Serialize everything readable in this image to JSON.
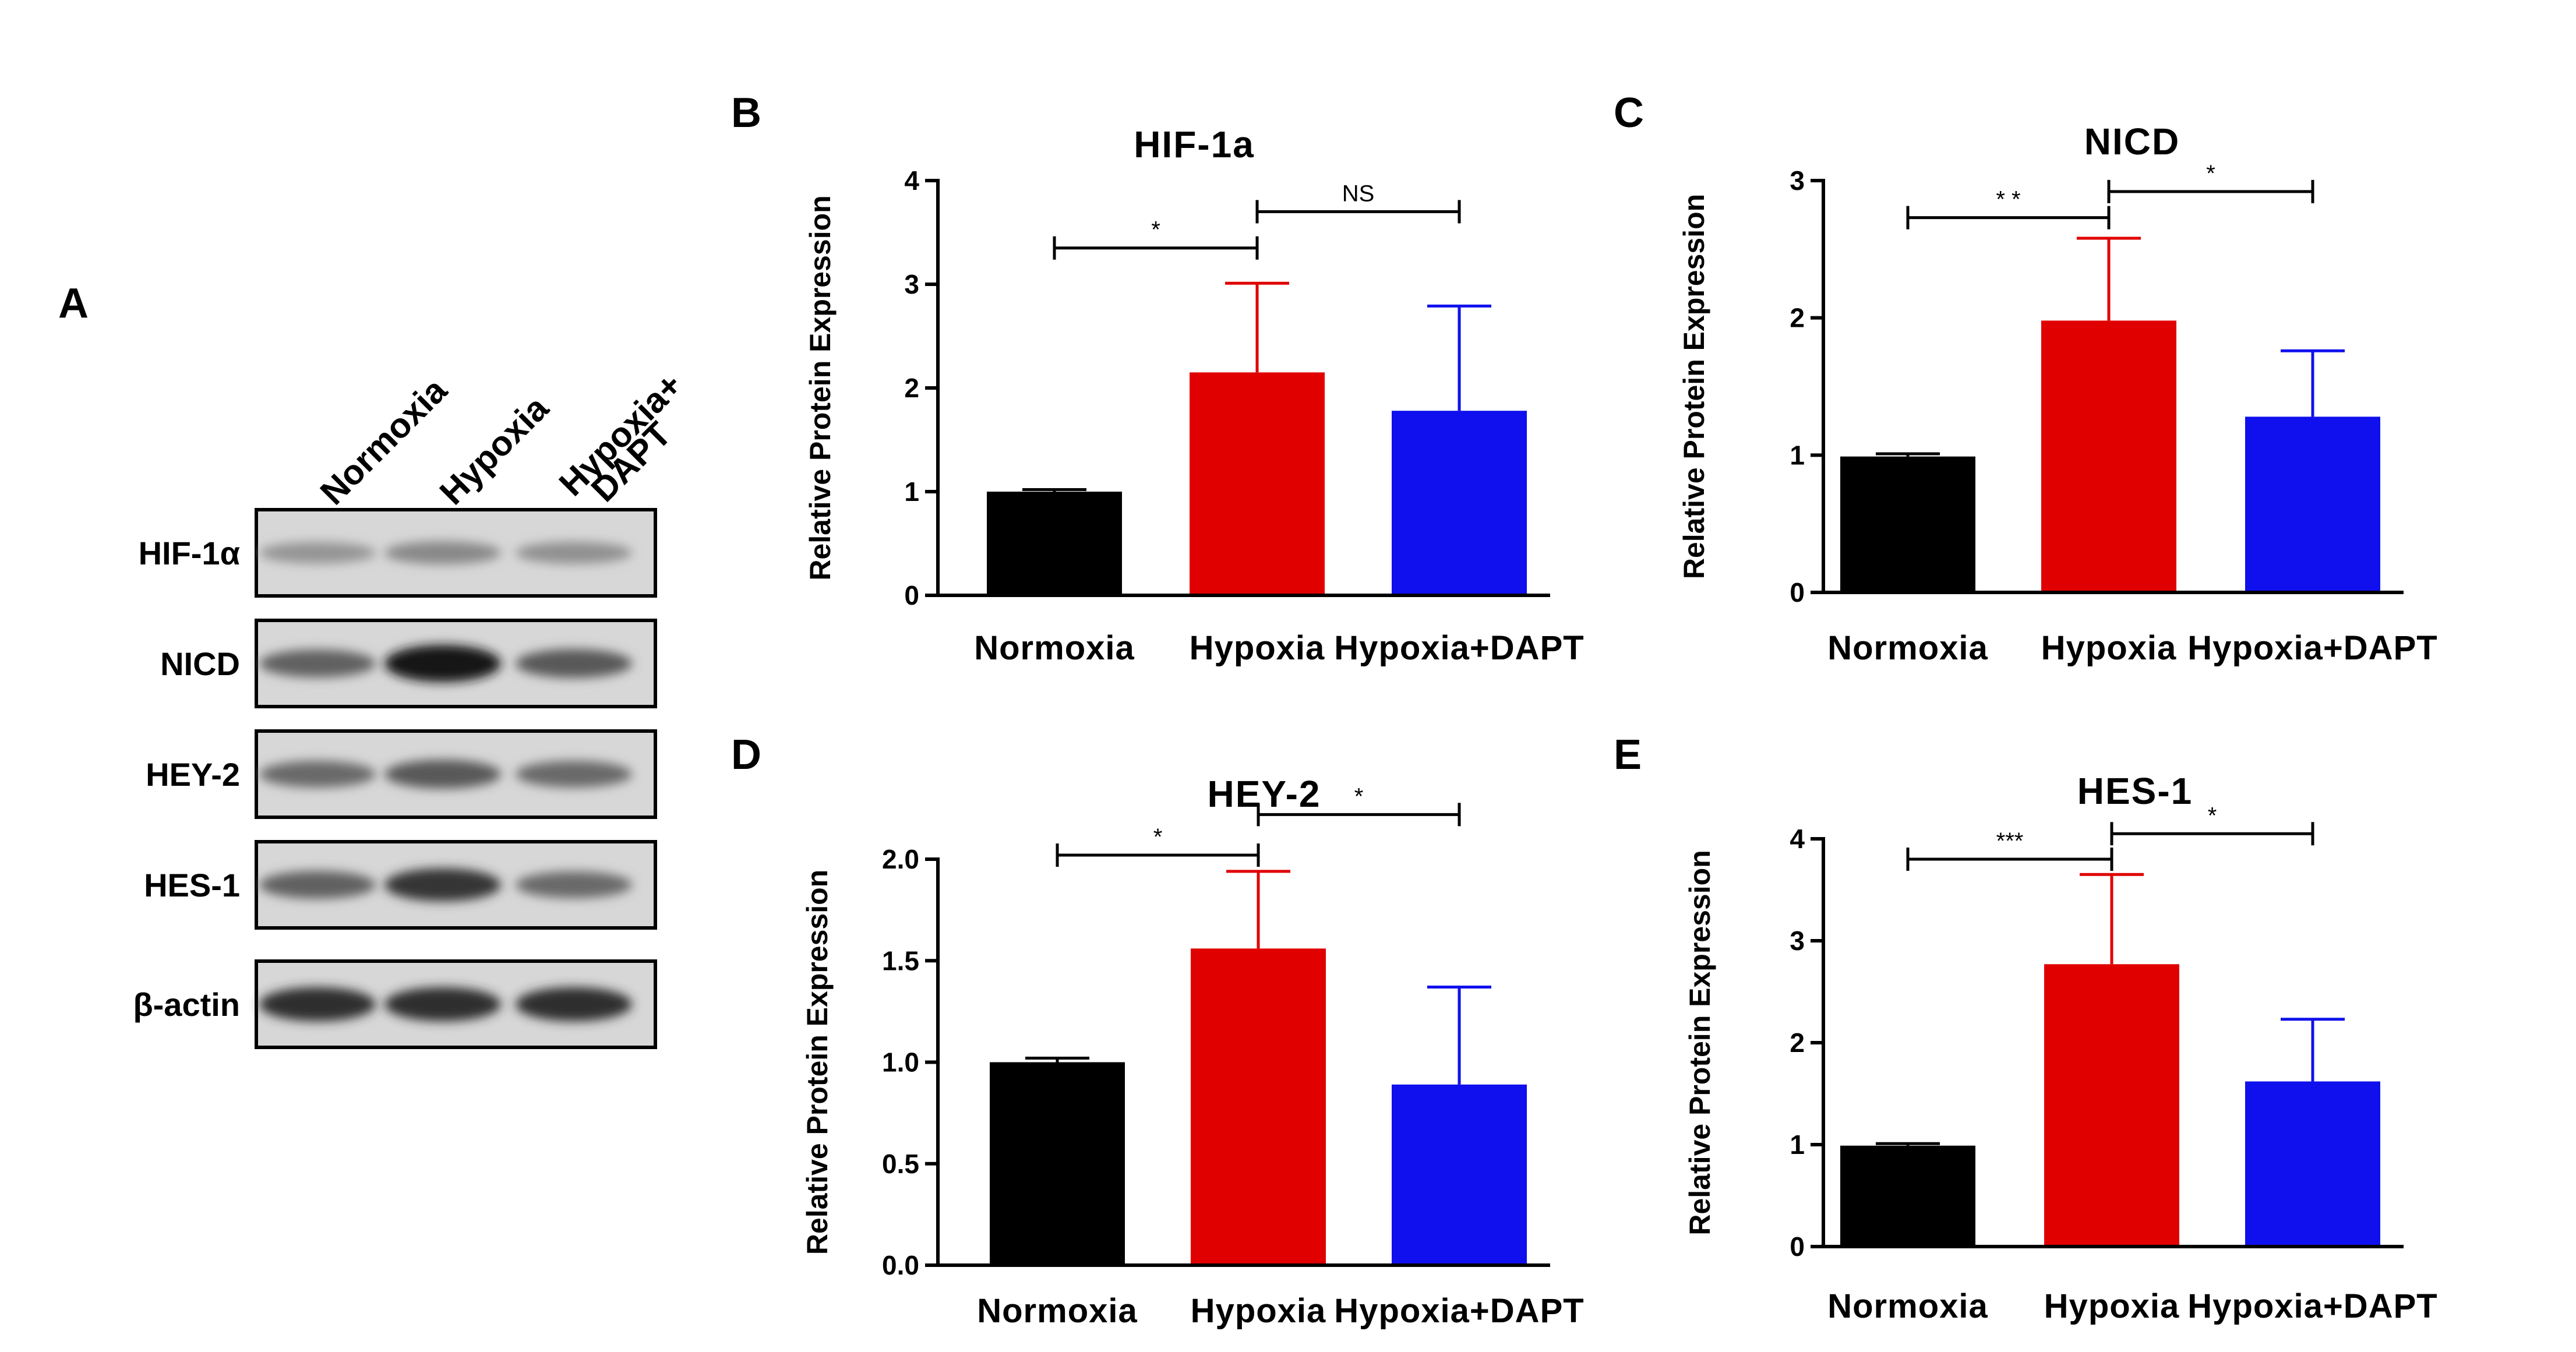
{
  "panel_labels": {
    "a": "A",
    "b": "B",
    "c": "C",
    "d": "D",
    "e": "E"
  },
  "blot": {
    "lanes": [
      "Normoxia",
      "Hypoxia",
      "Hypoxia+",
      "DAPT"
    ],
    "rows": [
      {
        "label": "HIF-1α",
        "intensity": [
          0.25,
          0.32,
          0.27
        ]
      },
      {
        "label": "NICD",
        "intensity": [
          0.55,
          1.0,
          0.6
        ]
      },
      {
        "label": "HEY-2",
        "intensity": [
          0.5,
          0.6,
          0.5
        ]
      },
      {
        "label": "HES-1",
        "intensity": [
          0.55,
          0.8,
          0.5
        ]
      },
      {
        "label": "β-actin",
        "intensity": [
          0.85,
          0.85,
          0.85
        ]
      }
    ]
  },
  "colors": {
    "normoxia": "#000000",
    "hypoxia": "#e00000",
    "dapt": "#1010ee"
  },
  "chart_data": [
    {
      "id": "B",
      "type": "bar",
      "title": "HIF-1a",
      "ylabel": "Relative Protein Expression",
      "categories": [
        "Normoxia",
        "Hypoxia",
        "Hypoxia+DAPT"
      ],
      "values": [
        1.0,
        2.15,
        1.78
      ],
      "errors": [
        0.02,
        0.86,
        1.01
      ],
      "ylim": [
        0,
        4
      ],
      "yticks": [
        "0",
        "1",
        "2",
        "3",
        "4"
      ],
      "significance": [
        {
          "from": 0,
          "to": 1,
          "label": "*",
          "y": 3.35
        },
        {
          "from": 1,
          "to": 2,
          "label": "NS",
          "y": 3.7
        }
      ]
    },
    {
      "id": "C",
      "type": "bar",
      "title": "NICD",
      "ylabel": "Relative Protein Expression",
      "categories": [
        "Normoxia",
        "Hypoxia",
        "Hypoxia+DAPT"
      ],
      "values": [
        0.99,
        1.98,
        1.28
      ],
      "errors": [
        0.02,
        0.6,
        0.48
      ],
      "ylim": [
        0,
        3
      ],
      "yticks": [
        "0",
        "1",
        "2",
        "3"
      ],
      "significance": [
        {
          "from": 0,
          "to": 1,
          "label": "* *",
          "y": 2.73
        },
        {
          "from": 1,
          "to": 2,
          "label": "*",
          "y": 2.92
        }
      ]
    },
    {
      "id": "D",
      "type": "bar",
      "title": "HEY-2",
      "ylabel": "Relative Protein Expression",
      "categories": [
        "Normoxia",
        "Hypoxia",
        "Hypoxia+DAPT"
      ],
      "values": [
        1.0,
        1.56,
        0.89
      ],
      "errors": [
        0.02,
        0.38,
        0.48
      ],
      "ylim": [
        0,
        2.0
      ],
      "yticks": [
        "0.0",
        "0.5",
        "1.0",
        "1.5",
        "2.0"
      ],
      "significance": [
        {
          "from": 0,
          "to": 1,
          "label": "*",
          "y": 2.02
        },
        {
          "from": 1,
          "to": 2,
          "label": "*",
          "y": 2.22
        }
      ]
    },
    {
      "id": "E",
      "type": "bar",
      "title": "HES-1",
      "ylabel": "Relative Protein Expression",
      "categories": [
        "Normoxia",
        "Hypoxia",
        "Hypoxia+DAPT"
      ],
      "values": [
        0.99,
        2.77,
        1.62
      ],
      "errors": [
        0.02,
        0.88,
        0.61
      ],
      "ylim": [
        0,
        4
      ],
      "yticks": [
        "0",
        "1",
        "2",
        "3",
        "4"
      ],
      "significance": [
        {
          "from": 0,
          "to": 1,
          "label": "***",
          "y": 3.8
        },
        {
          "from": 1,
          "to": 2,
          "label": "*",
          "y": 4.05
        }
      ]
    }
  ]
}
